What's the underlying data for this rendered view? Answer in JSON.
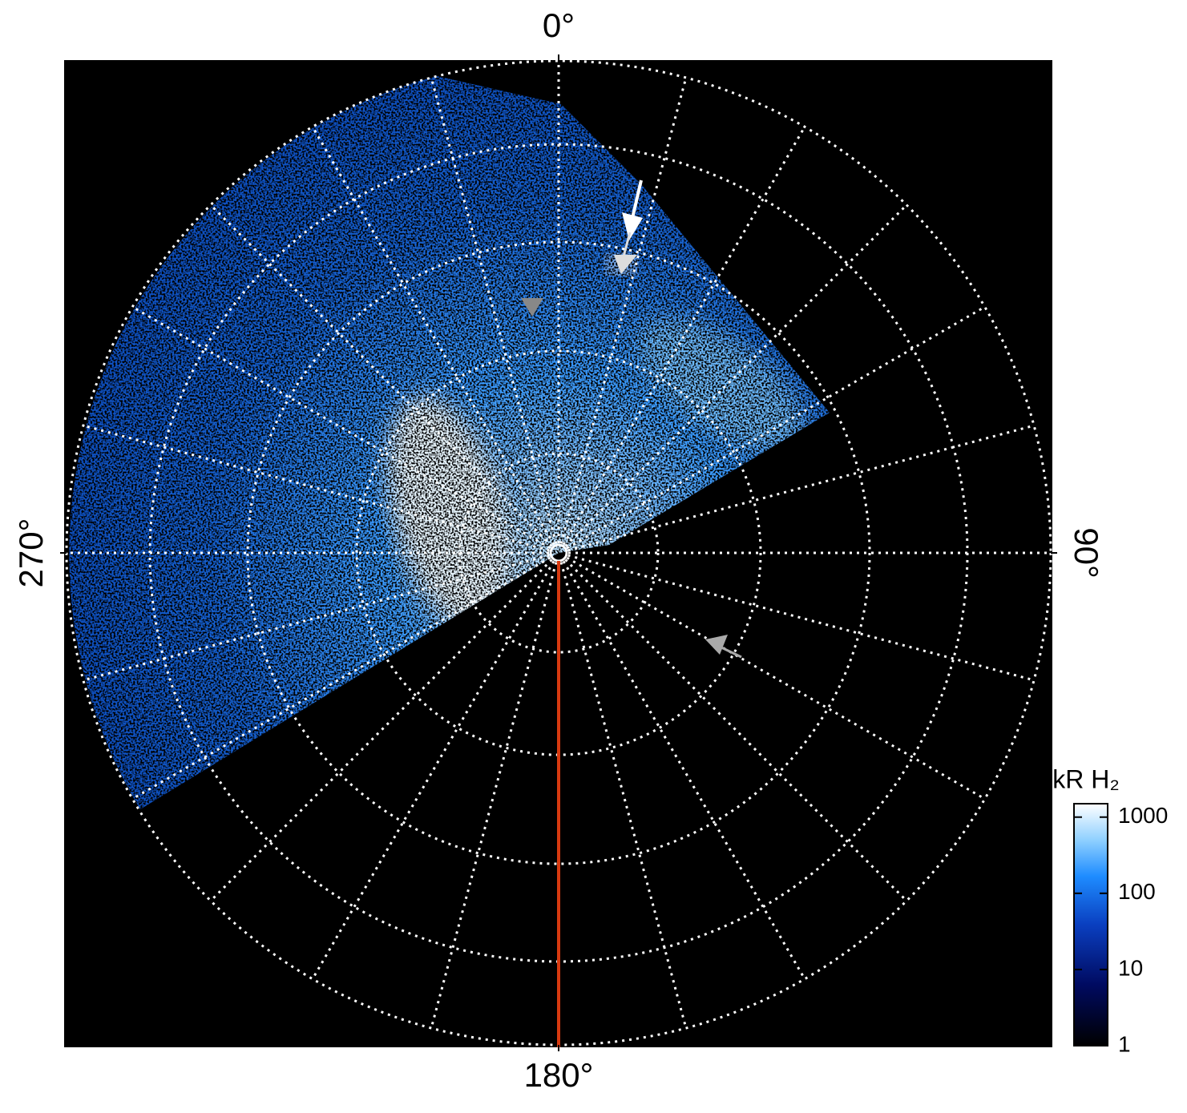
{
  "chart_data": {
    "type": "polar-map",
    "angle_ticks": [
      {
        "value": 0,
        "label": "0°"
      },
      {
        "value": 90,
        "label": "90°"
      },
      {
        "value": 180,
        "label": "180°"
      },
      {
        "value": 270,
        "label": "270°"
      }
    ],
    "colorbar": {
      "title": "kR H₂",
      "log": true,
      "lim": [
        1,
        1500
      ],
      "ticks": [
        1,
        10,
        100,
        1000
      ]
    }
  }
}
